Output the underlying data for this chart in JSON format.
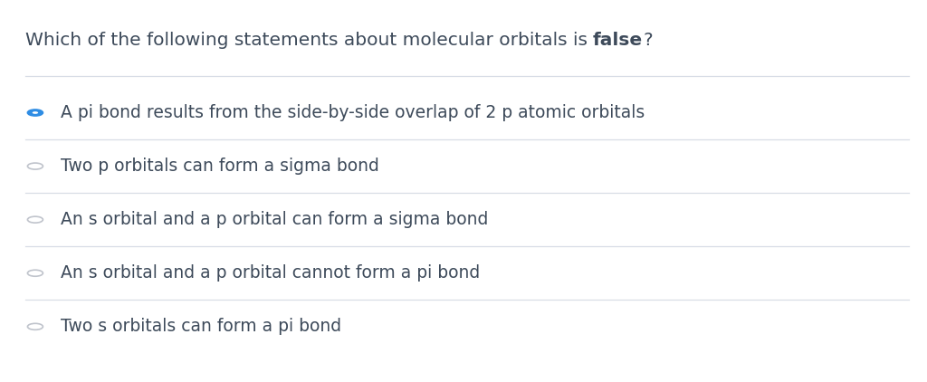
{
  "background_color": "#ffffff",
  "title_normal": "Which of the following statements about molecular orbitals is ",
  "title_bold": "false",
  "title_suffix": "?",
  "title_fontsize": 14.5,
  "title_color": "#3d4a5a",
  "options": [
    "A pi bond results from the side-by-side overlap of 2 p atomic orbitals",
    "Two p orbitals can form a sigma bond",
    "An s orbital and a p orbital can form a sigma bond",
    "An s orbital and a p orbital cannot form a pi bond",
    "Two s orbitals can form a pi bond"
  ],
  "selected_index": 0,
  "option_fontsize": 13.5,
  "option_color": "#3d4a5a",
  "radio_selected_fill": "#2f8de4",
  "radio_selected_edge": "#2f8de4",
  "radio_unselected_fill": "#ffffff",
  "radio_unselected_edge": "#c0c4cc",
  "divider_color": "#d8dde6",
  "divider_linewidth": 0.9
}
